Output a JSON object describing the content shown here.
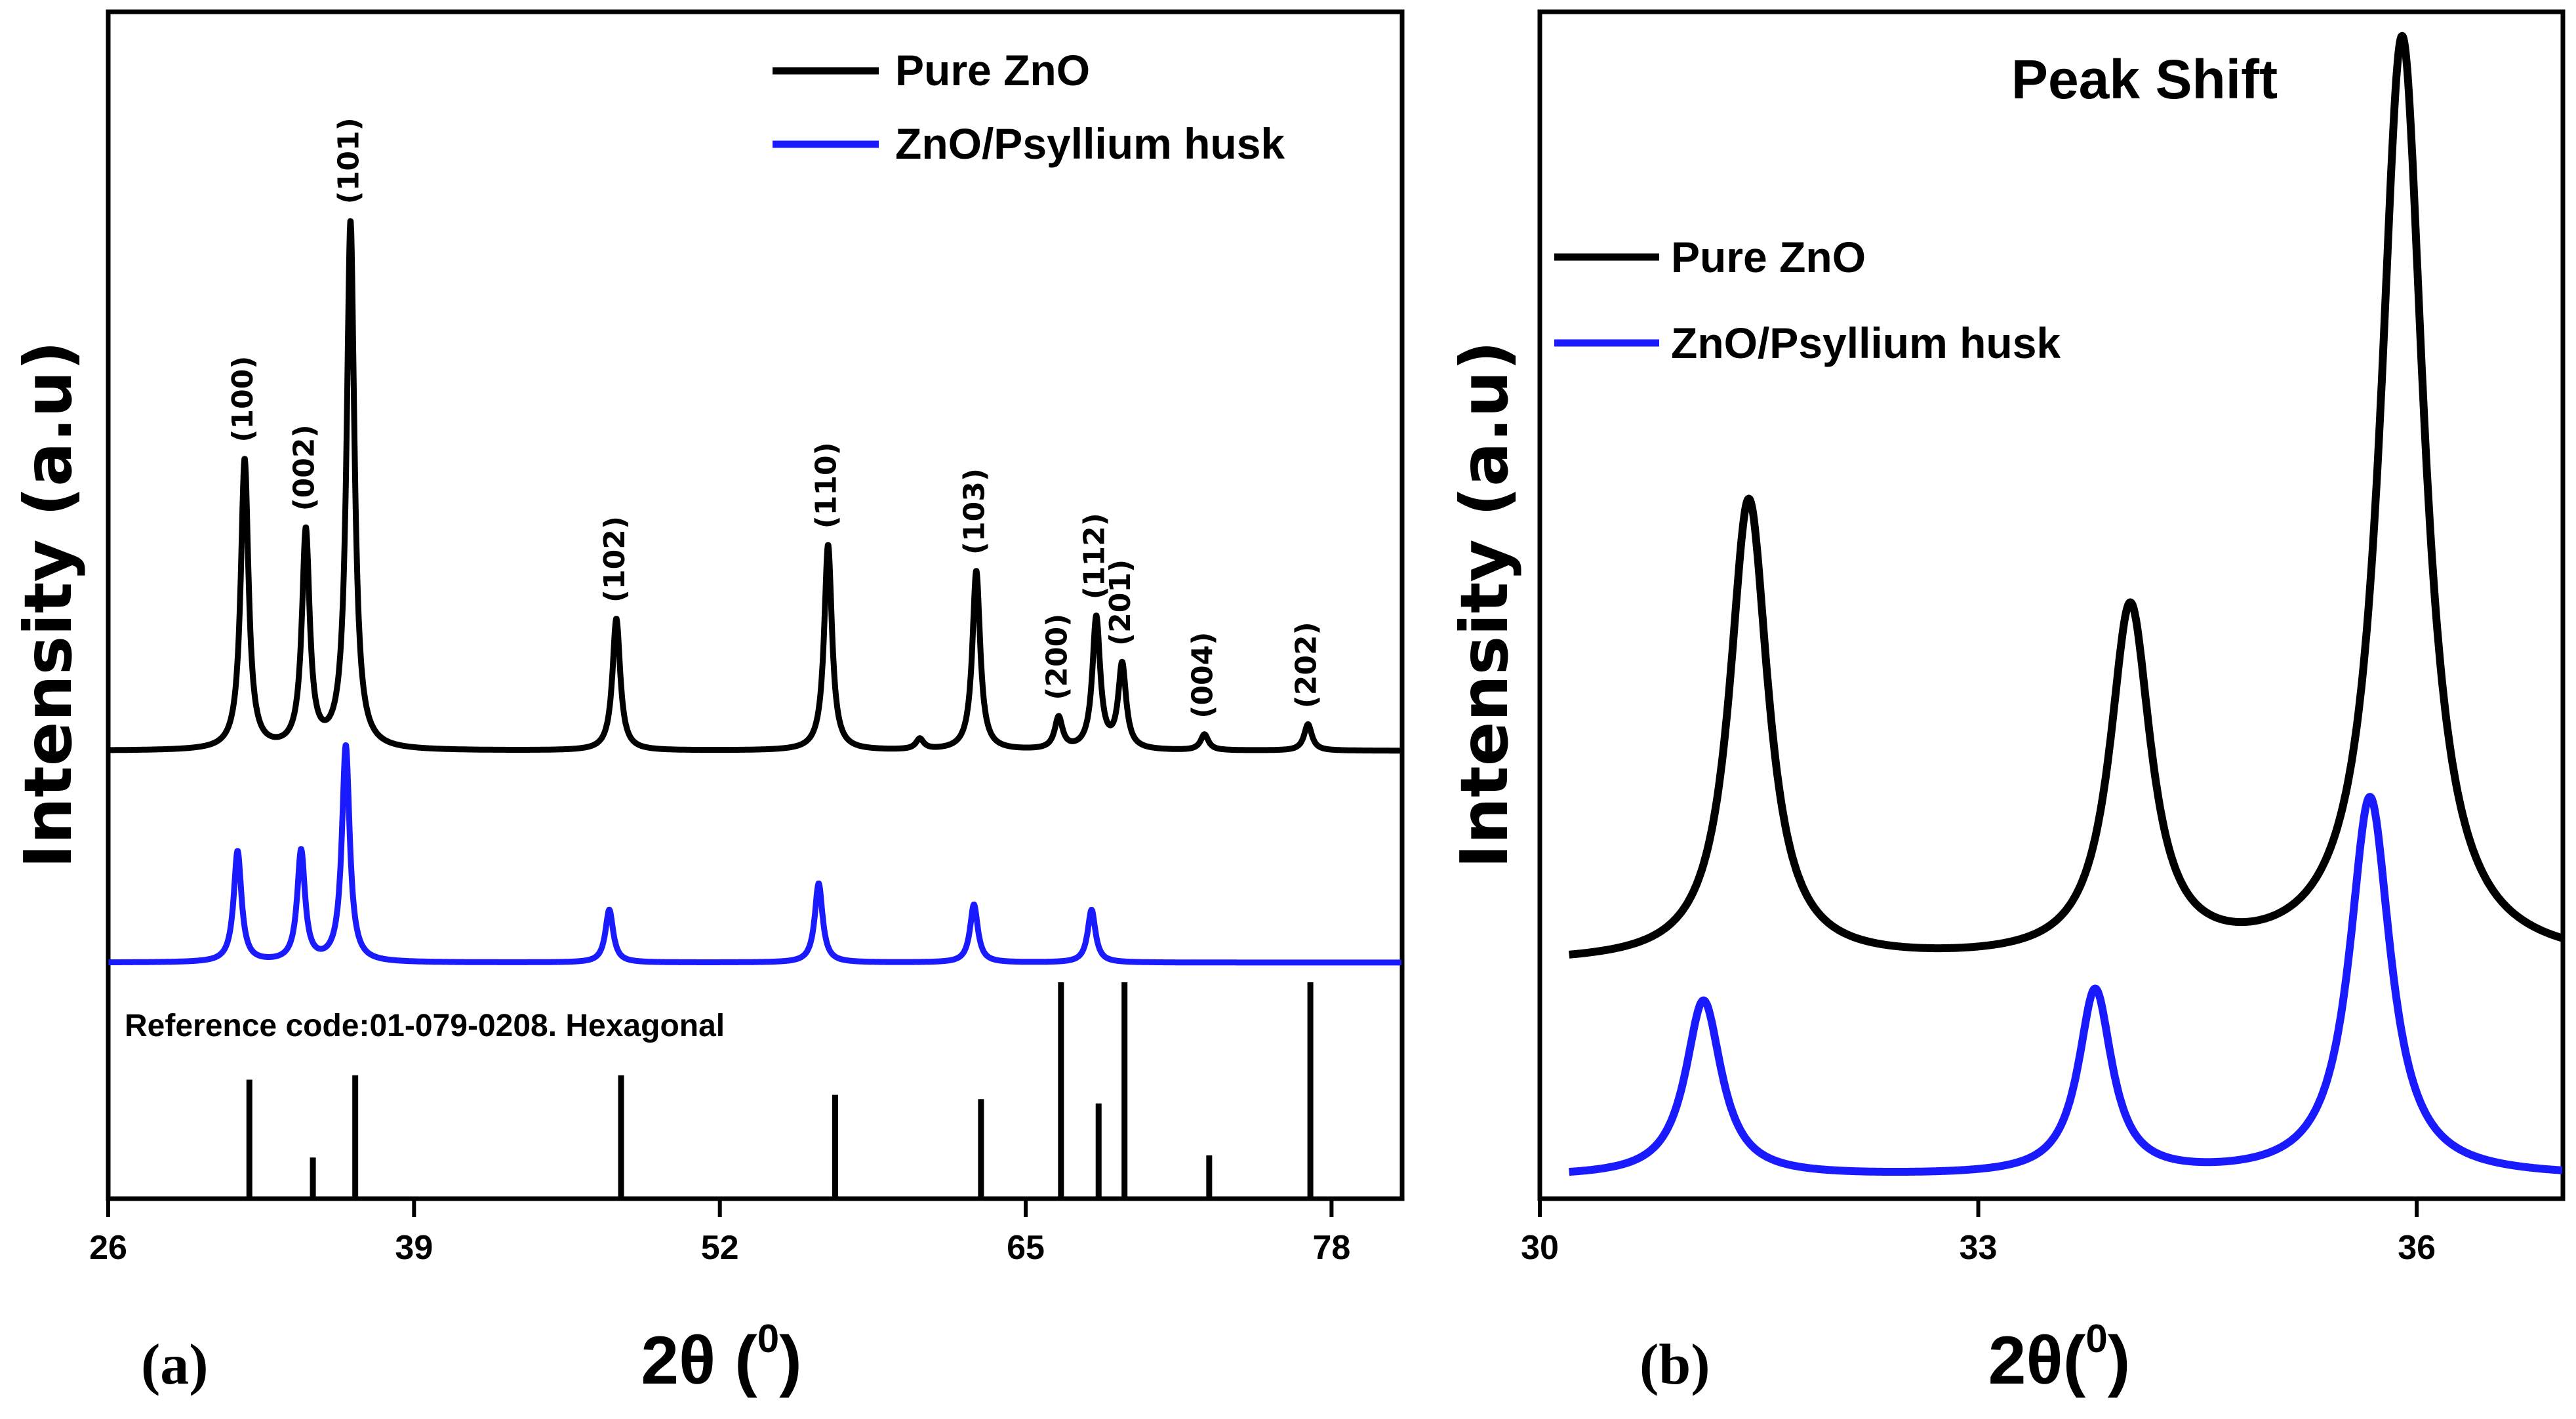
{
  "chart_data": [
    {
      "type": "line",
      "panel_label": "(a)",
      "xlabel": "2θ (0)",
      "xlabel_main": "2θ (",
      "xlabel_sup": "0",
      "xlabel_close": ")",
      "ylabel": "Intensity (a.u)",
      "xlim": [
        26,
        81
      ],
      "xticks": [
        26,
        39,
        52,
        65,
        78
      ],
      "colors": {
        "pure": "#000000",
        "composite": "#1a1aff"
      },
      "series": [
        {
          "name": "Pure ZnO",
          "color": "#000000",
          "peaks": [
            [
              31.8,
              0.55
            ],
            [
              34.4,
              0.41
            ],
            [
              36.3,
              1.0
            ],
            [
              47.6,
              0.25
            ],
            [
              56.6,
              0.39
            ],
            [
              62.9,
              0.34
            ],
            [
              66.4,
              0.06
            ],
            [
              68.0,
              0.25
            ],
            [
              69.1,
              0.16
            ],
            [
              72.6,
              0.03
            ],
            [
              77.0,
              0.05
            ],
            [
              60.5,
              0.02
            ]
          ]
        },
        {
          "name": "ZnO/Psyllium husk",
          "color": "#1a1aff",
          "peaks": [
            [
              31.5,
              0.21
            ],
            [
              34.2,
              0.21
            ],
            [
              36.1,
              0.41
            ],
            [
              47.3,
              0.1
            ],
            [
              56.2,
              0.15
            ],
            [
              62.8,
              0.11
            ],
            [
              67.8,
              0.1
            ]
          ]
        }
      ],
      "peak_labels": [
        {
          "text": "(100)",
          "x": 31.8
        },
        {
          "text": "(002)",
          "x": 34.4
        },
        {
          "text": "(101)",
          "x": 36.3
        },
        {
          "text": "(102)",
          "x": 47.6
        },
        {
          "text": "(110)",
          "x": 56.6
        },
        {
          "text": "(103)",
          "x": 62.9
        },
        {
          "text": "(200)",
          "x": 66.4
        },
        {
          "text": "(112)",
          "x": 68.0
        },
        {
          "text": "(201)",
          "x": 69.1
        },
        {
          "text": "(004)",
          "x": 72.6
        },
        {
          "text": "(202)",
          "x": 77.0
        }
      ],
      "reference": {
        "text": "Reference code:01-079-0208. Hexagonal",
        "lines": [
          [
            32.0,
            0.55
          ],
          [
            34.7,
            0.19
          ],
          [
            36.5,
            0.57
          ],
          [
            47.8,
            0.57
          ],
          [
            56.9,
            0.48
          ],
          [
            63.1,
            0.46
          ],
          [
            66.5,
            1.0
          ],
          [
            68.1,
            0.44
          ],
          [
            69.2,
            1.0
          ],
          [
            72.8,
            0.2
          ],
          [
            77.1,
            1.0
          ]
        ]
      },
      "legend": [
        "Pure ZnO",
        "ZnO/Psyllium husk"
      ]
    },
    {
      "type": "line",
      "panel_label": "(b)",
      "title": "Peak Shift",
      "xlabel": "2θ(0)",
      "xlabel_main": "2θ(",
      "xlabel_sup": "0",
      "xlabel_close": ")",
      "ylabel": "Intensity (a.u)",
      "xlim": [
        30,
        37.0
      ],
      "xticks": [
        30,
        33,
        36
      ],
      "series": [
        {
          "name": "Pure ZnO",
          "color": "#000000",
          "peaks": [
            [
              31.43,
              0.5,
              0.16
            ],
            [
              34.04,
              0.38,
              0.17
            ],
            [
              35.9,
              1.0,
              0.18
            ]
          ]
        },
        {
          "name": "ZnO/Psyllium husk",
          "color": "#1a1aff",
          "peaks": [
            [
              31.12,
              0.19,
              0.15
            ],
            [
              33.8,
              0.2,
              0.14
            ],
            [
              35.68,
              0.41,
              0.17
            ]
          ]
        }
      ],
      "legend": [
        "Pure ZnO",
        "ZnO/Psyllium husk"
      ]
    }
  ]
}
